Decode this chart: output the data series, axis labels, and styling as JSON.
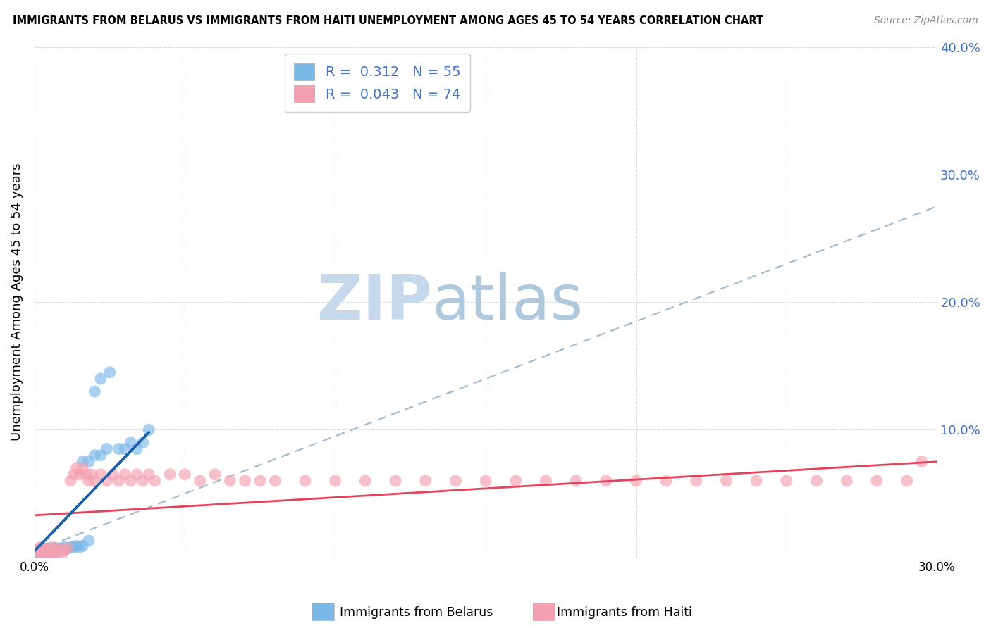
{
  "title": "IMMIGRANTS FROM BELARUS VS IMMIGRANTS FROM HAITI UNEMPLOYMENT AMONG AGES 45 TO 54 YEARS CORRELATION CHART",
  "source": "Source: ZipAtlas.com",
  "ylabel": "Unemployment Among Ages 45 to 54 years",
  "xlim": [
    0.0,
    0.3
  ],
  "ylim": [
    0.0,
    0.4
  ],
  "belarus_R": 0.312,
  "belarus_N": 55,
  "haiti_R": 0.043,
  "haiti_N": 74,
  "belarus_color": "#7ab8e8",
  "haiti_color": "#f4a0b0",
  "belarus_line_color": "#1a5fa8",
  "haiti_line_color": "#e8425a",
  "dashed_line_color": "#a0b8cc",
  "background_color": "#ffffff",
  "grid_color": "#cccccc",
  "watermark_zip": "ZIP",
  "watermark_atlas": "atlas",
  "watermark_color_zip": "#c8d8e8",
  "watermark_color_atlas": "#b8ccd8",
  "legend_label_belarus": "Immigrants from Belarus",
  "legend_label_haiti": "Immigrants from Haiti",
  "right_axis_color": "#4472C4",
  "bel_line_x0": 0.0,
  "bel_line_y0": 0.005,
  "bel_line_x1": 0.038,
  "bel_line_y1": 0.098,
  "dash_line_x0": 0.0,
  "dash_line_y0": 0.005,
  "dash_line_x1": 0.3,
  "dash_line_y1": 0.275,
  "hai_line_x0": 0.0,
  "hai_line_y0": 0.033,
  "hai_line_x1": 0.3,
  "hai_line_y1": 0.075
}
